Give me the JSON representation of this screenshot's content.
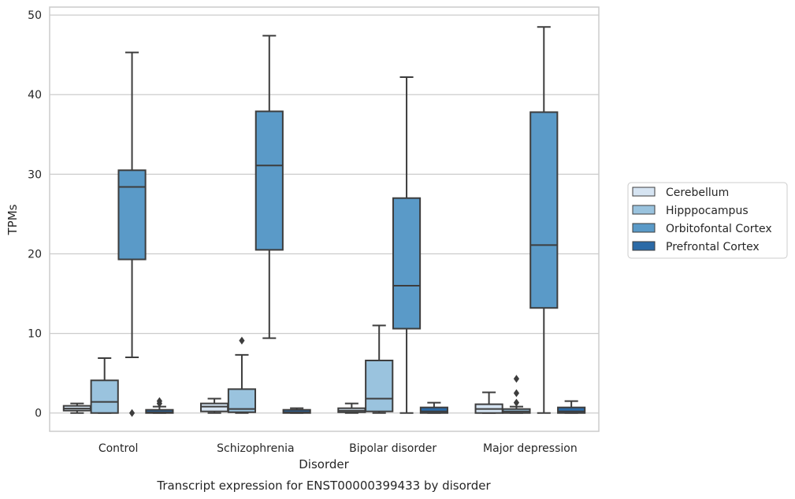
{
  "chart_data": {
    "type": "box",
    "title": "",
    "caption": "Transcript expression for ENST00000399433 by disorder",
    "xlabel": "Disorder",
    "ylabel": "TPMs",
    "ylim": [
      -2.3,
      51
    ],
    "yticks": [
      0,
      10,
      20,
      30,
      40,
      50
    ],
    "grid": "horizontal",
    "legend_position": "right",
    "categories": [
      "Control",
      "Schizophrenia",
      "Bipolar disorder",
      "Major depression"
    ],
    "series": [
      {
        "name": "Cerebellum",
        "color": "#d6e4f2",
        "boxes": [
          {
            "whisker_low": 0.0,
            "q1": 0.3,
            "median": 0.55,
            "q3": 0.9,
            "whisker_high": 1.2,
            "outliers": []
          },
          {
            "whisker_low": 0.0,
            "q1": 0.2,
            "median": 0.8,
            "q3": 1.2,
            "whisker_high": 1.8,
            "outliers": []
          },
          {
            "whisker_low": 0.0,
            "q1": 0.1,
            "median": 0.3,
            "q3": 0.6,
            "whisker_high": 1.2,
            "outliers": []
          },
          {
            "whisker_low": 0.0,
            "q1": 0.0,
            "median": 0.5,
            "q3": 1.1,
            "whisker_high": 2.6,
            "outliers": []
          }
        ]
      },
      {
        "name": "Hipppocampus",
        "color": "#9ac3de",
        "boxes": [
          {
            "whisker_low": 0.0,
            "q1": 0.0,
            "median": 1.4,
            "q3": 4.1,
            "whisker_high": 6.9,
            "outliers": []
          },
          {
            "whisker_low": 0.0,
            "q1": 0.1,
            "median": 0.5,
            "q3": 3.0,
            "whisker_high": 7.3,
            "outliers": [
              9.1
            ]
          },
          {
            "whisker_low": 0.0,
            "q1": 0.2,
            "median": 1.8,
            "q3": 6.6,
            "whisker_high": 11.0,
            "outliers": []
          },
          {
            "whisker_low": 0.0,
            "q1": 0.0,
            "median": 0.2,
            "q3": 0.5,
            "whisker_high": 0.8,
            "outliers": [
              1.3,
              2.5,
              4.3
            ]
          }
        ]
      },
      {
        "name": "Orbitofontal Cortex",
        "color": "#5a9ac8",
        "boxes": [
          {
            "whisker_low": 7.0,
            "q1": 19.3,
            "median": 28.4,
            "q3": 30.5,
            "whisker_high": 45.3,
            "outliers": [
              0.0
            ]
          },
          {
            "whisker_low": 9.4,
            "q1": 20.5,
            "median": 31.1,
            "q3": 37.9,
            "whisker_high": 47.4,
            "outliers": []
          },
          {
            "whisker_low": 0.0,
            "q1": 10.6,
            "median": 16.0,
            "q3": 27.0,
            "whisker_high": 42.2,
            "outliers": []
          },
          {
            "whisker_low": 0.0,
            "q1": 13.2,
            "median": 21.1,
            "q3": 37.8,
            "whisker_high": 48.5,
            "outliers": []
          }
        ]
      },
      {
        "name": "Prefrontal Cortex",
        "color": "#2b6aa6",
        "boxes": [
          {
            "whisker_low": 0.0,
            "q1": 0.0,
            "median": 0.1,
            "q3": 0.4,
            "whisker_high": 0.8,
            "outliers": [
              1.2,
              1.5
            ]
          },
          {
            "whisker_low": 0.0,
            "q1": 0.0,
            "median": 0.1,
            "q3": 0.4,
            "whisker_high": 0.6,
            "outliers": []
          },
          {
            "whisker_low": 0.0,
            "q1": 0.0,
            "median": 0.2,
            "q3": 0.7,
            "whisker_high": 1.3,
            "outliers": []
          },
          {
            "whisker_low": 0.0,
            "q1": 0.0,
            "median": 0.2,
            "q3": 0.7,
            "whisker_high": 1.5,
            "outliers": []
          }
        ]
      }
    ]
  }
}
